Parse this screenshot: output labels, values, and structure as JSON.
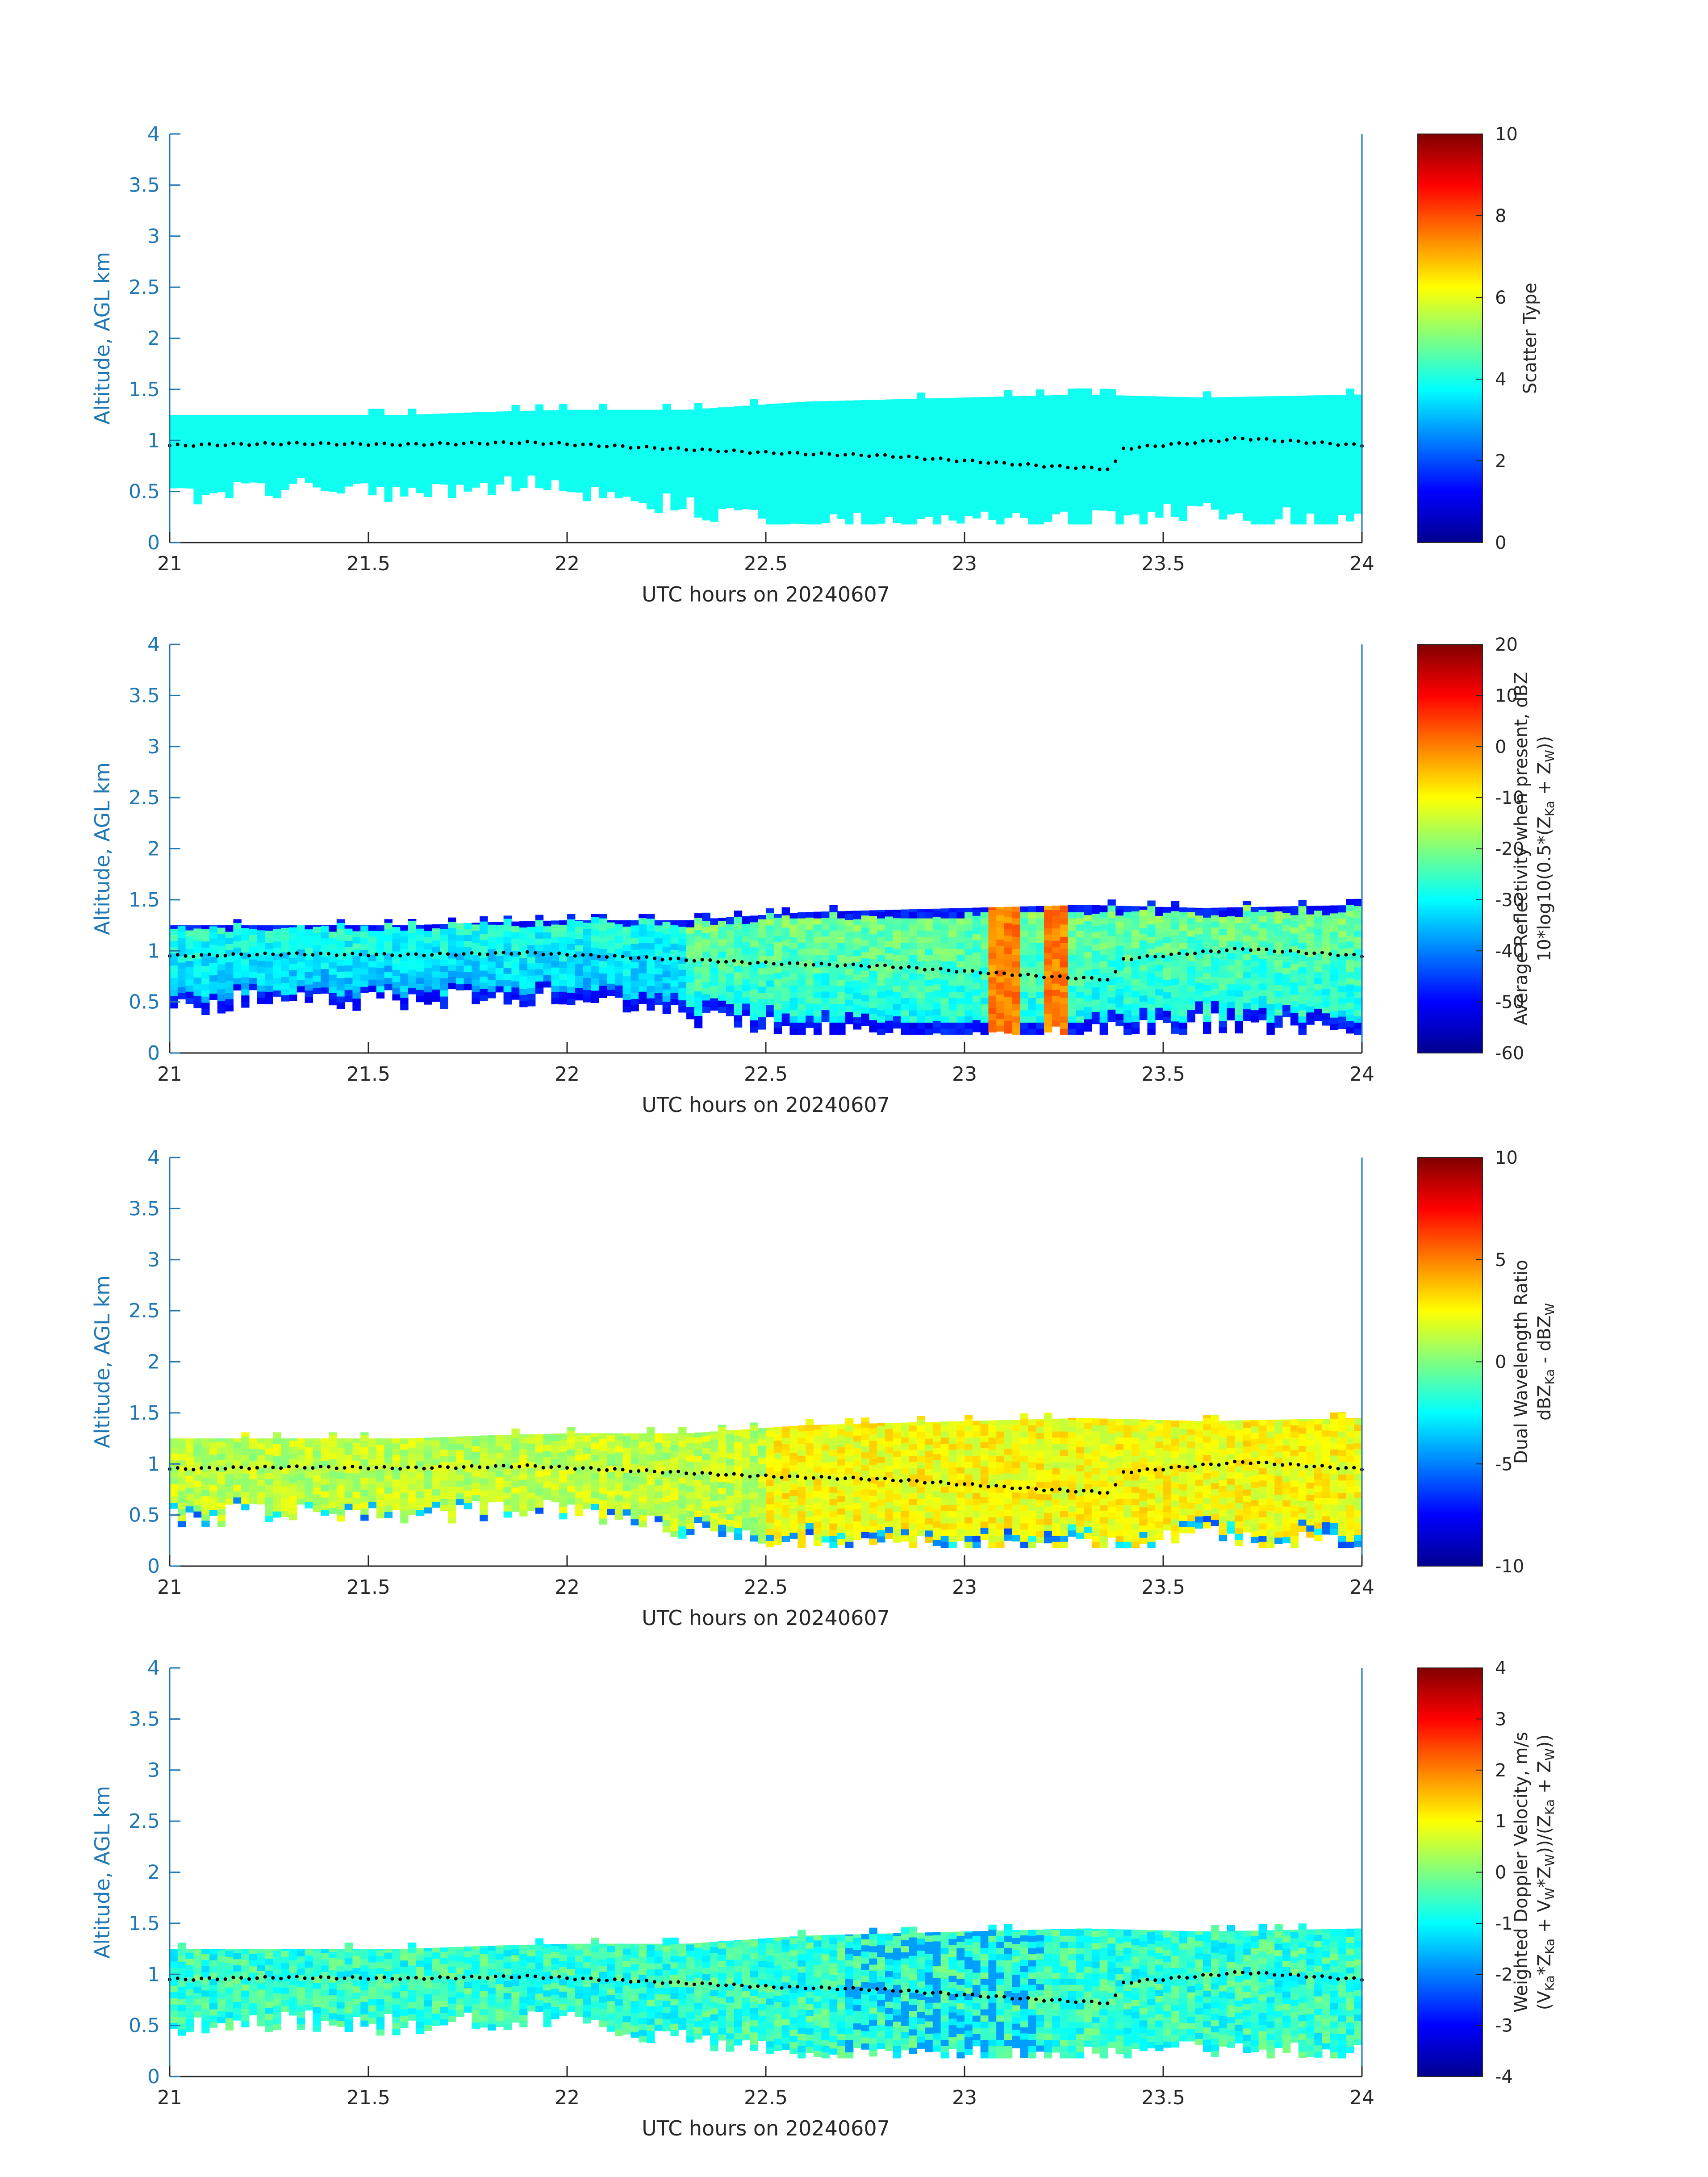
{
  "chart_data": [
    {
      "type": "heatmap",
      "xlabel": "UTC hours on 20240607",
      "ylabel": "Altitude, AGL km",
      "xlim": [
        21,
        24
      ],
      "ylim": [
        0,
        4
      ],
      "xticks": [
        "21",
        "21.5",
        "22",
        "22.5",
        "23",
        "23.5",
        "24"
      ],
      "yticks": [
        "0",
        "0.5",
        "1",
        "1.5",
        "2",
        "2.5",
        "3",
        "3.5",
        "4"
      ],
      "colorbar": {
        "label_parts": [
          "Scatter Type"
        ],
        "range": [
          0,
          10
        ],
        "ticks": [
          "0",
          "2",
          "4",
          "6",
          "8",
          "10"
        ],
        "colormap": "jet"
      },
      "field": "scatter_type",
      "typical_value": 3.9,
      "overlay": "black dotted line (cloud-base estimate)"
    },
    {
      "type": "heatmap",
      "xlabel": "UTC hours on 20240607",
      "ylabel": "Altitude, AGL km",
      "xlim": [
        21,
        24
      ],
      "ylim": [
        0,
        4
      ],
      "xticks": [
        "21",
        "21.5",
        "22",
        "22.5",
        "23",
        "23.5",
        "24"
      ],
      "yticks": [
        "0",
        "0.5",
        "1",
        "1.5",
        "2",
        "2.5",
        "3",
        "3.5",
        "4"
      ],
      "colorbar": {
        "label_line1": "Average Reflectivity when present, dBZ",
        "label_line2_parts": [
          "10*log10(0.5*(Z",
          "Ka",
          " + Z",
          "W",
          "))"
        ],
        "range": [
          -60,
          20
        ],
        "ticks": [
          "-60",
          "-50",
          "-40",
          "-30",
          "-20",
          "-10",
          "0",
          "10",
          "20"
        ],
        "colormap": "jet"
      },
      "field": "reflectivity",
      "typical_range": [
        -45,
        -5
      ],
      "peak_value": 5,
      "overlay": "black dotted line (cloud-base estimate)"
    },
    {
      "type": "heatmap",
      "xlabel": "UTC hours on 20240607",
      "ylabel": "Altitude, AGL km",
      "xlim": [
        21,
        24
      ],
      "ylim": [
        0,
        4
      ],
      "xticks": [
        "21",
        "21.5",
        "22",
        "22.5",
        "23",
        "23.5",
        "24"
      ],
      "yticks": [
        "0",
        "0.5",
        "1",
        "1.5",
        "2",
        "2.5",
        "3",
        "3.5",
        "4"
      ],
      "colorbar": {
        "label_line1": "Dual Wavelength Ratio",
        "label_line2_parts": [
          "dBZ",
          "Ka",
          " - dBZ",
          "W"
        ],
        "range": [
          -10,
          10
        ],
        "ticks": [
          "-10",
          "-5",
          "0",
          "5",
          "10"
        ],
        "colormap": "jet"
      },
      "field": "dual_wavelength_ratio",
      "typical_range": [
        -1,
        4
      ],
      "overlay": "black dotted line (cloud-base estimate)"
    },
    {
      "type": "heatmap",
      "xlabel": "UTC hours on 20240607",
      "ylabel": "Altitude, AGL km",
      "xlim": [
        21,
        24
      ],
      "ylim": [
        0,
        4
      ],
      "xticks": [
        "21",
        "21.5",
        "22",
        "22.5",
        "23",
        "23.5",
        "24"
      ],
      "yticks": [
        "0",
        "0.5",
        "1",
        "1.5",
        "2",
        "2.5",
        "3",
        "3.5",
        "4"
      ],
      "colorbar": {
        "label_line1": "Weighted Doppler Velocity, m/s",
        "label_line2_parts": [
          "(V",
          "Ka",
          "*Z",
          "Ka",
          " + V",
          "W",
          "*Z",
          "W",
          "))/(Z",
          "Ka",
          " + Z",
          "W",
          "))"
        ],
        "range": [
          -4,
          4
        ],
        "ticks": [
          "-4",
          "-3",
          "-2",
          "-1",
          "0",
          "1",
          "2",
          "3",
          "4"
        ],
        "colormap": "jet"
      },
      "field": "doppler_velocity",
      "typical_range": [
        -2,
        0.5
      ],
      "overlay": "black dotted line (cloud-base estimate)"
    }
  ],
  "cloud_extent": {
    "time_hours": [
      21.0,
      21.3,
      21.6,
      21.8,
      22.0,
      22.3,
      22.6,
      23.0,
      23.3,
      23.6,
      24.0
    ],
    "bottom_km": [
      0.45,
      0.55,
      0.5,
      0.55,
      0.55,
      0.35,
      0.2,
      0.2,
      0.2,
      0.3,
      0.2
    ],
    "top_km": [
      1.25,
      1.25,
      1.25,
      1.28,
      1.3,
      1.3,
      1.38,
      1.42,
      1.45,
      1.42,
      1.45
    ]
  },
  "dotted_line": {
    "time_hours": [
      21.0,
      21.3,
      21.6,
      21.9,
      22.2,
      22.5,
      22.8,
      23.0,
      23.2,
      23.37,
      23.4,
      23.7,
      24.0
    ],
    "altitude_km": [
      0.95,
      0.97,
      0.96,
      0.98,
      0.93,
      0.88,
      0.85,
      0.8,
      0.75,
      0.72,
      0.92,
      1.02,
      0.95
    ]
  }
}
